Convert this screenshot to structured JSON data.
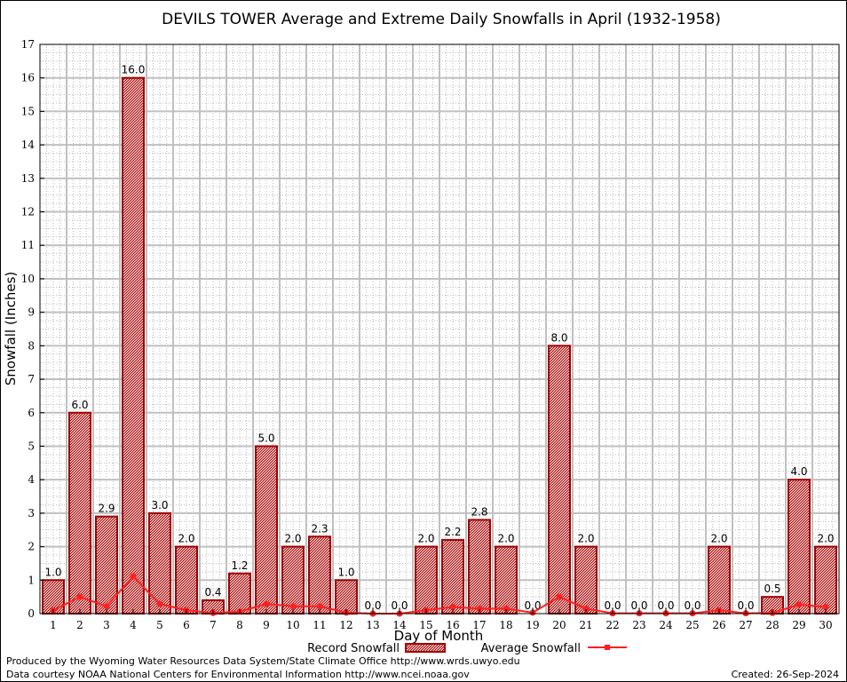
{
  "chart_data": {
    "type": "bar",
    "title": "DEVILS TOWER Average and Extreme Daily Snowfalls in April (1932-1958)",
    "xlabel": "Day of Month",
    "ylabel": "Snowfall (Inches)",
    "ylim": [
      0,
      17
    ],
    "yticks": [
      "0",
      "1",
      "2",
      "3",
      "4",
      "5",
      "6",
      "7",
      "8",
      "9",
      "10",
      "11",
      "12",
      "13",
      "14",
      "15",
      "16",
      "17"
    ],
    "categories": [
      "1",
      "2",
      "3",
      "4",
      "5",
      "6",
      "7",
      "8",
      "9",
      "10",
      "11",
      "12",
      "13",
      "14",
      "15",
      "16",
      "17",
      "18",
      "19",
      "20",
      "21",
      "22",
      "23",
      "24",
      "25",
      "26",
      "27",
      "28",
      "29",
      "30"
    ],
    "grid": true,
    "legend_position": "bottom",
    "series": [
      {
        "name": "Record Snowfall",
        "type": "bar",
        "color": "#a00000",
        "values": [
          1.0,
          6.0,
          2.9,
          16.0,
          3.0,
          2.0,
          0.4,
          1.2,
          5.0,
          2.0,
          2.3,
          1.0,
          0.0,
          0.0,
          2.0,
          2.2,
          2.8,
          2.0,
          0.0,
          8.0,
          2.0,
          0.0,
          0.0,
          0.0,
          0.0,
          2.0,
          0.0,
          0.5,
          4.0,
          2.0
        ],
        "labels": [
          "1.0",
          "6.0",
          "2.9",
          "16.0",
          "3.0",
          "2.0",
          "0.4",
          "1.2",
          "5.0",
          "2.0",
          "2.3",
          "1.0",
          "0.0",
          "0.0",
          "2.0",
          "2.2",
          "2.8",
          "2.0",
          "0.0",
          "8.0",
          "2.0",
          "0.0",
          "0.0",
          "0.0",
          "0.0",
          "2.0",
          "0.0",
          "0.5",
          "4.0",
          "2.0"
        ]
      },
      {
        "name": "Average Snowfall",
        "type": "line",
        "color": "#ff2020",
        "values": [
          0.1,
          0.5,
          0.22,
          1.11,
          0.29,
          0.1,
          0.02,
          0.06,
          0.29,
          0.22,
          0.22,
          0.03,
          0.0,
          0.0,
          0.1,
          0.2,
          0.15,
          0.15,
          0.03,
          0.5,
          0.15,
          0.01,
          0.01,
          0.01,
          0.01,
          0.1,
          0.01,
          0.02,
          0.27,
          0.2
        ]
      }
    ]
  },
  "footer": {
    "produced_by": "Produced by the Wyoming Water Resources Data System/State Climate Office http://www.wrds.uwyo.edu",
    "data_courtesy": "Data courtesy NOAA National Centers for Environmental Information http://www.ncei.noaa.gov",
    "created": "Created: 26-Sep-2024"
  }
}
